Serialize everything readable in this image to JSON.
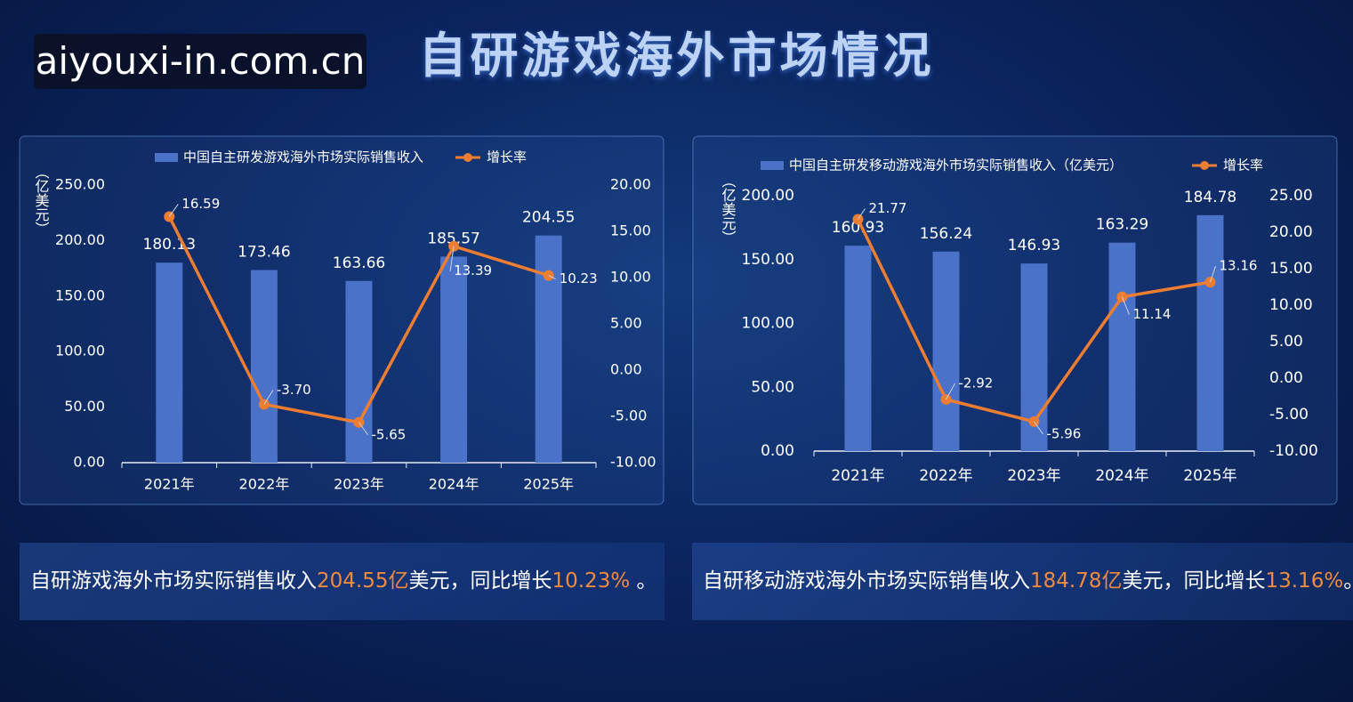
{
  "title": "自研游戏海外市场情况",
  "watermark": "aiyouxi-in.com.cn",
  "captions": [
    {
      "text": "自研游戏海外市场实际销售收入",
      "amount": "204.55亿",
      "mid": "美元，同比增长",
      "rate": "10.23%",
      "end": " 。"
    },
    {
      "text": "自研移动游戏海外市场实际销售收入",
      "amount": "184.78亿",
      "mid": "美元，同比增长",
      "rate": "13.16%",
      "end": "。"
    }
  ],
  "chart_data": [
    {
      "type": "bar",
      "y_label": "（亿美元）",
      "categories": [
        "2021年",
        "2022年",
        "2023年",
        "2024年",
        "2025年"
      ],
      "series": [
        {
          "name": "中国自主研发游戏海外市场实际销售收入",
          "type": "bar",
          "color": "#4a72c8",
          "values": [
            180.13,
            173.46,
            163.66,
            185.57,
            204.55
          ]
        },
        {
          "name": "增长率",
          "type": "line",
          "axis": "y2",
          "color": "#ed7d31",
          "values": [
            16.59,
            -3.7,
            -5.65,
            13.39,
            10.23
          ],
          "value_labels": [
            "16.59",
            "-3.70",
            "-5.65",
            "13.39",
            "10.23"
          ]
        }
      ],
      "ylim": [
        0,
        250
      ],
      "yticks": [
        {
          "value": 0,
          "label": "0.00"
        },
        {
          "value": 50,
          "label": "50.00"
        },
        {
          "value": 100,
          "label": "100.00"
        },
        {
          "value": 150,
          "label": "150.00"
        },
        {
          "value": 200,
          "label": "200.00"
        },
        {
          "value": 250,
          "label": "250.00"
        }
      ],
      "y2lim": [
        -10,
        20
      ],
      "y2ticks": [
        {
          "value": -10,
          "label": "-10.00"
        },
        {
          "value": -5,
          "label": "-5.00"
        },
        {
          "value": 0,
          "label": "0.00"
        },
        {
          "value": 5,
          "label": "5.00"
        },
        {
          "value": 10,
          "label": "10.00"
        },
        {
          "value": 15,
          "label": "15.00"
        },
        {
          "value": 20,
          "label": "20.00"
        }
      ]
    },
    {
      "type": "bar",
      "y_label": "（亿美元）",
      "categories": [
        "2021年",
        "2022年",
        "2023年",
        "2024年",
        "2025年"
      ],
      "series": [
        {
          "name": "中国自主研发移动游戏海外市场实际销售收入（亿美元）",
          "type": "bar",
          "color": "#4a72c8",
          "values": [
            160.93,
            156.24,
            146.93,
            163.29,
            184.78
          ]
        },
        {
          "name": "增长率",
          "type": "line",
          "axis": "y2",
          "color": "#ed7d31",
          "values": [
            21.77,
            -2.92,
            -5.96,
            11.14,
            13.16
          ]
        }
      ],
      "ylim": [
        0,
        200
      ],
      "yticks": [
        {
          "value": 0,
          "label": "0.00"
        },
        {
          "value": 50,
          "label": "50.00"
        },
        {
          "value": 100,
          "label": "100.00"
        },
        {
          "value": 150,
          "label": "150.00"
        },
        {
          "value": 200,
          "label": "200.00"
        }
      ],
      "y2lim": [
        -10,
        25
      ],
      "y2ticks": [
        {
          "value": -10,
          "label": "-10.00"
        },
        {
          "value": -5,
          "label": "-5.00"
        },
        {
          "value": 0,
          "label": "0.00"
        },
        {
          "value": 5,
          "label": "5.00"
        },
        {
          "value": 10,
          "label": "10.00"
        },
        {
          "value": 15,
          "label": "15.00"
        },
        {
          "value": 20,
          "label": "20.00"
        },
        {
          "value": 25,
          "label": "25.00"
        }
      ]
    }
  ]
}
